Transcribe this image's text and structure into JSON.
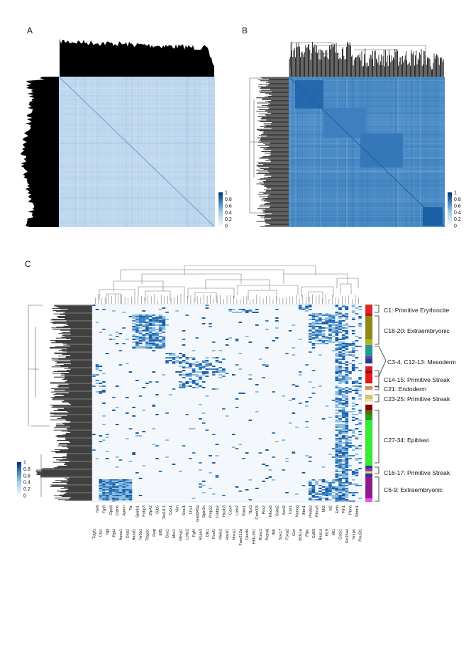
{
  "panels": {
    "a": "A",
    "b": "B",
    "c": "C"
  },
  "colorbar": {
    "ticks": [
      "1",
      "0.8",
      "0.6",
      "0.4",
      "0.2",
      "0"
    ],
    "color_low": "#f3f8fd",
    "color_high": "#08306b"
  },
  "heatmap": {
    "genes": [
      "Tdgf1",
      "Nefl",
      "Ctsc",
      "Fgf8",
      "Npl",
      "Gpx3",
      "Rpl4",
      "Cldn6",
      "Apoa1",
      "Apom",
      "Dab2",
      "Ttr",
      "Hand1",
      "Spink1",
      "Nr0b1",
      "Fabp3",
      "Tfap2c",
      "Zfp42",
      "Pwp",
      "Gjb5",
      "Elf5",
      "Tex19.1",
      "Gsx1",
      "Cdx1",
      "Msx1",
      "Vim",
      "Mesp1",
      "Snai1",
      "Lefty2",
      "Lhx1",
      "Fgf4",
      "Gadd45g",
      "Rspo3",
      "Spin2c",
      "Dlk1",
      "Pmp22",
      "Foxf1",
      "Crabp2",
      "Meis2",
      "Hoxb3",
      "Hoxb1",
      "Cdx4",
      "Hoxa1",
      "Lmo2",
      "Fam212a",
      "Gata1",
      "Cited4",
      "Tbx3",
      "Hbb-bh1",
      "Creb3l3",
      "Runx1",
      "Pitx2",
      "Prdm6",
      "Rhox6",
      "Ifitb",
      "Gata2",
      "Sox17",
      "Ascl2",
      "Foxa2",
      "Cer1",
      "Gsc",
      "Nanog",
      "Bcl11a",
      "Ifitm1",
      "Pipc",
      "Phlda2",
      "Cd63",
      "Rhox5",
      "Rap1a",
      "Mt2",
      "H19",
      "Id2",
      "Mt1",
      "Emb",
      "Gsto1",
      "Fth1",
      "Slc25a4",
      "Ptma",
      "Snrpn",
      "Stmn1",
      "Pou5f1"
    ]
  },
  "clusters": [
    {
      "label": "C1: Primitive Erythrocite",
      "color": "#e8262a"
    },
    {
      "label": "C18-20: Extraembryonic",
      "color": "#8c8a14"
    },
    {
      "label": "C3-4, C12-13: Mesoderm",
      "color": "#1f9c9a"
    },
    {
      "label": "C14-15: Primitive Streak",
      "color": "#e31a1c"
    },
    {
      "label": "C21: Endoderm",
      "color": "#e0884a"
    },
    {
      "label": "C23-25: Primitive Streak",
      "color": "#d8c070"
    },
    {
      "label": "C27-34: Epiblast",
      "color": "#33ee33"
    },
    {
      "label": "C16-17: Primitive Streak",
      "color": "#cc2299"
    },
    {
      "label": "C6-9: Extraembryonic",
      "color": "#8e1a8e"
    }
  ]
}
